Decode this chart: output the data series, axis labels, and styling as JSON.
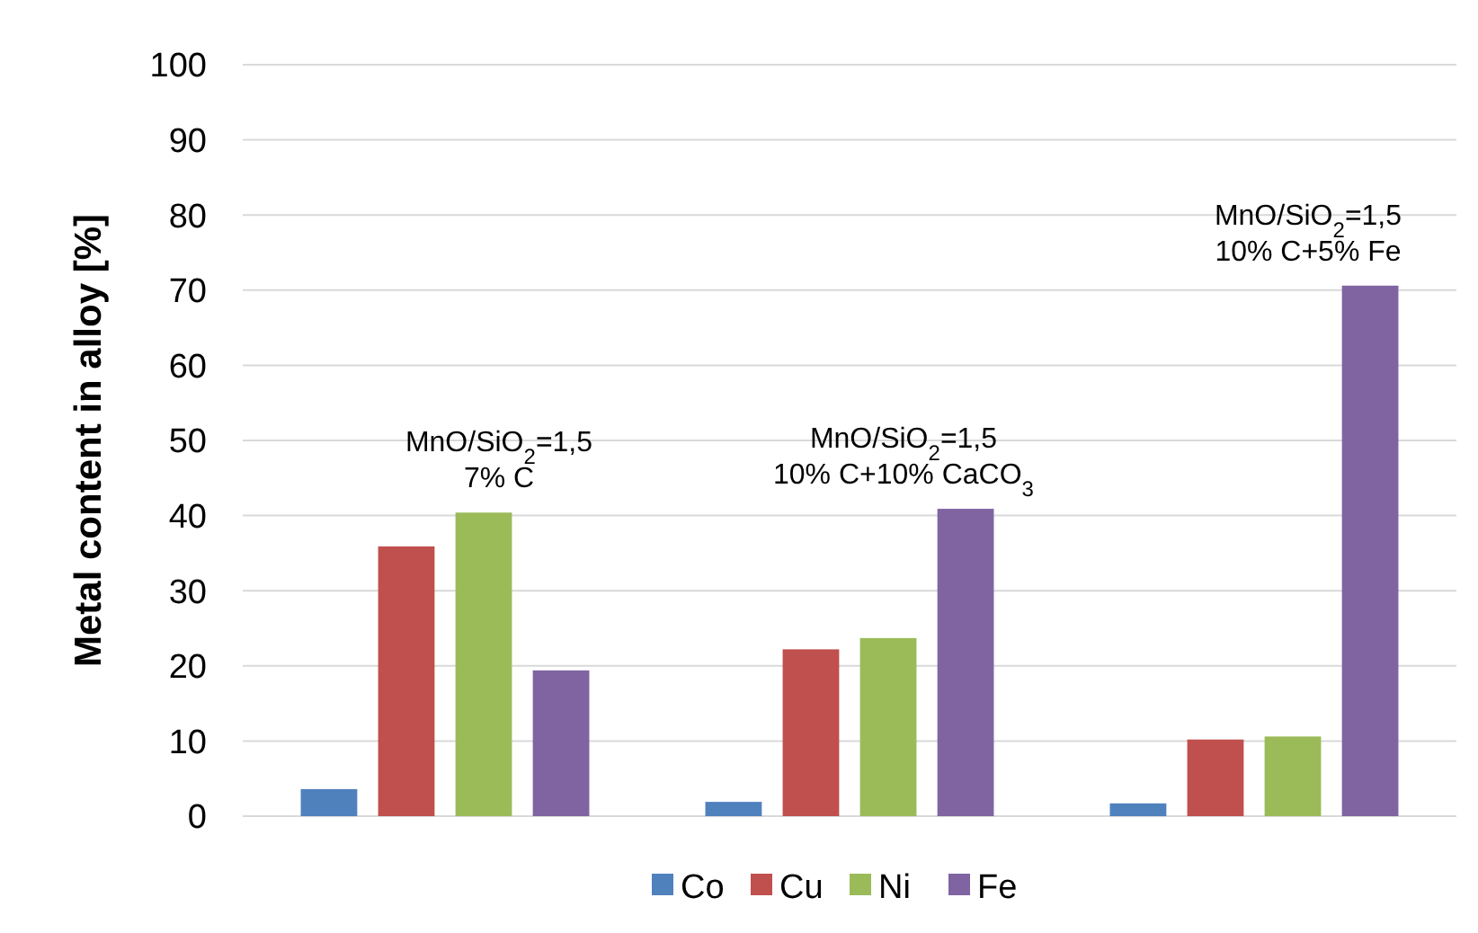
{
  "chart_data": {
    "type": "bar",
    "ylabel": "Metal content in alloy [%]",
    "categories": [
      null,
      null,
      null
    ],
    "series": [
      {
        "name": "Co",
        "color": "#4f81bd",
        "values": [
          3.6,
          1.9,
          1.7
        ]
      },
      {
        "name": "Cu",
        "color": "#c0504d",
        "values": [
          35.9,
          22.2,
          10.2
        ]
      },
      {
        "name": "Ni",
        "color": "#9bbb59",
        "values": [
          40.4,
          23.7,
          10.6
        ]
      },
      {
        "name": "Fe",
        "color": "#8064a2",
        "values": [
          19.4,
          40.9,
          70.6
        ]
      }
    ],
    "ylim": [
      0,
      100
    ],
    "yticks": [
      0,
      10,
      20,
      30,
      40,
      50,
      60,
      70,
      80,
      90,
      100
    ],
    "grid": "y",
    "legend": "bottom",
    "annotations": [
      "MnO/SiO$_{2}$=1,5\n7% C",
      "MnO/SiO$_{2}$=1,5\n10% C+10% CaCO$_{3}$",
      "MnO/SiO$_{2}$=1,5\n10% C+5% Fe"
    ]
  }
}
